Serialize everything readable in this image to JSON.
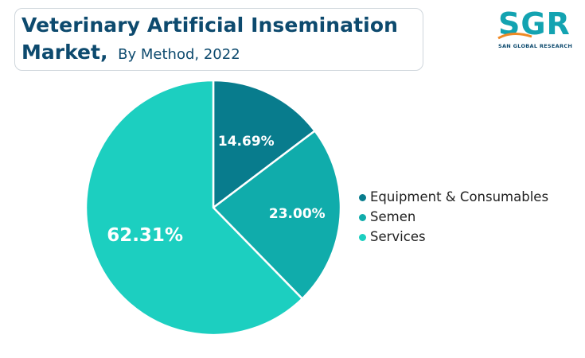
{
  "title": {
    "line1": "Veterinary Artificial Insemination",
    "line2_bold": "Market,",
    "line2_rest": "By Method, 2022"
  },
  "logo": {
    "letters": "SGR",
    "tagline": "SAN GLOBAL RESEARCH"
  },
  "colors": {
    "title": "#0d4a6e",
    "brand": "#13a3b1"
  },
  "chart_data": {
    "type": "pie",
    "start_angle_deg": 0,
    "direction": "clockwise",
    "slices": [
      {
        "label": "Equipment & Consumables",
        "value": 14.69,
        "display": "14.69%",
        "color": "#087c8d"
      },
      {
        "label": "Semen",
        "value": 23.0,
        "display": "23.00%",
        "color": "#10acab"
      },
      {
        "label": "Services",
        "value": 62.31,
        "display": "62.31%",
        "color": "#1ccfc0"
      }
    ],
    "legend_position": "right"
  }
}
